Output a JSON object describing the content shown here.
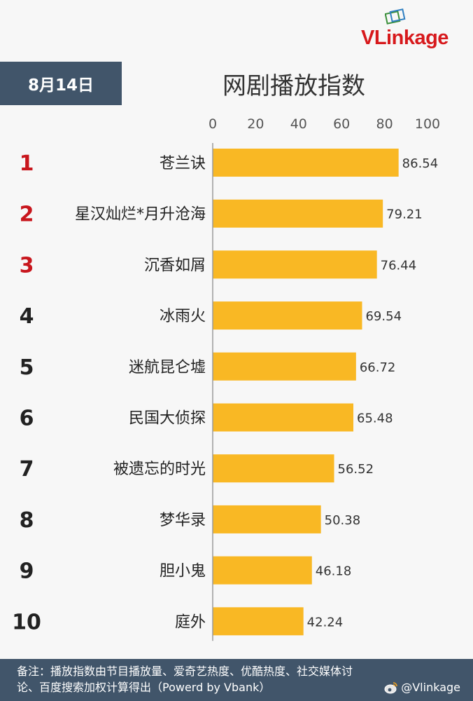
{
  "logo": {
    "text": "VLinkage"
  },
  "date_badge": "8月14日",
  "chart_data": {
    "type": "bar",
    "orientation": "horizontal",
    "title": "网剧播放指数",
    "ranks": [
      "1",
      "2",
      "3",
      "4",
      "5",
      "6",
      "7",
      "8",
      "9",
      "10"
    ],
    "categories": [
      "苍兰诀",
      "星汉灿烂*月升沧海",
      "沉香如屑",
      "冰雨火",
      "迷航昆仑墟",
      "民国大侦探",
      "被遗忘的时光",
      "梦华录",
      "胆小鬼",
      "庭外"
    ],
    "values": [
      86.54,
      79.21,
      76.44,
      69.54,
      66.72,
      65.48,
      56.52,
      50.38,
      46.18,
      42.24
    ],
    "xlim": [
      0,
      100
    ],
    "xticks": [
      0,
      20,
      40,
      60,
      80,
      100
    ],
    "grid": false,
    "legend": "none"
  },
  "colors": {
    "bar": "#f9b824",
    "rank_top": "#c8161d",
    "rank_other": "#222222",
    "header_bg": "#41556a",
    "logo": "#d7191c"
  },
  "footer": {
    "line1": "备注：播放指数由节目播放量、爱奇艺热度、优酷热度、社交媒体讨",
    "line2": "论、百度搜索加权计算得出（Powerd by Vbank）",
    "weibo_handle": "@Vlinkage"
  }
}
